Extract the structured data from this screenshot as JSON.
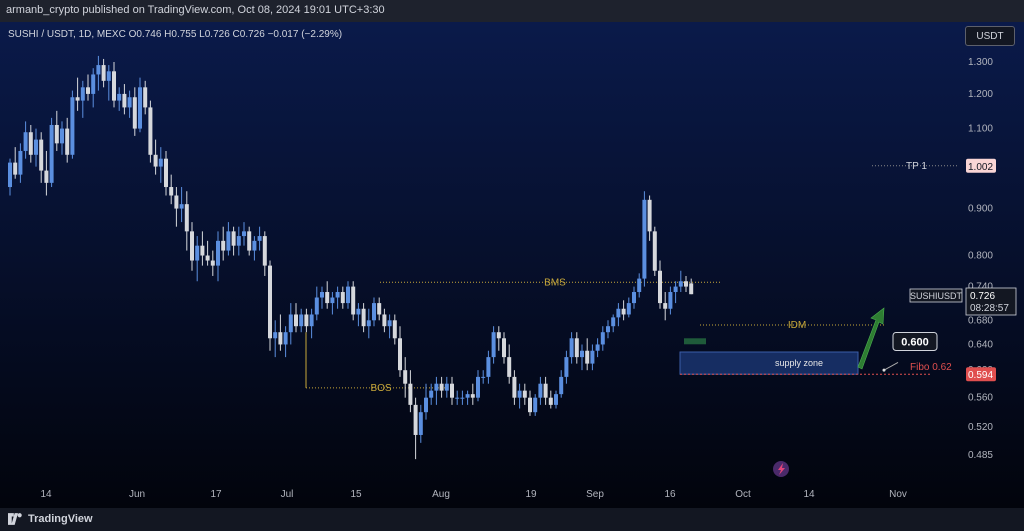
{
  "header": {
    "published": "armanb_crypto published on TradingView.com, Oct 08, 2024 19:01 UTC+3:30"
  },
  "symbol_info": "SUSHI / USDT, 1D, MEXC  O0.746  H0.755  L0.726  C0.726  −0.017 (−2.29%)",
  "currency": "USDT",
  "footer": {
    "brand": "TradingView"
  },
  "colors": {
    "background_top": "#0a1a4a",
    "background_bottom": "#02040c",
    "up": "#5b8fe0",
    "down": "#d6d8dc",
    "annotation": "#c8a83a",
    "accent_red": "#e04f4f",
    "supply_zone": "#1c3a7a",
    "arrow": "#2e7d32"
  },
  "labels": {
    "tp1": "TP 1",
    "tp1_price": "1.002",
    "bms": "BMS",
    "bos": "BOS",
    "idm": "IDM",
    "supply_zone": "supply zone",
    "fibo": "Fibo 0.62",
    "fibo_price": "0.594",
    "callout": "0.600",
    "symbol_tag": "SUSHIUSDT",
    "last_price": "0.726",
    "countdown": "08:28:57"
  },
  "chart_data": {
    "type": "candlestick",
    "symbol": "SUSHI / USDT",
    "interval": "1D",
    "exchange": "MEXC",
    "ohlc_last": {
      "open": 0.746,
      "high": 0.755,
      "low": 0.726,
      "close": 0.726,
      "change": -0.017,
      "change_pct": -2.29
    },
    "y_axis": {
      "scale": "log",
      "ticks": [
        "1.300",
        "1.200",
        "1.100",
        "0.900",
        "0.800",
        "0.740",
        "0.680",
        "0.640",
        "0.600",
        "0.560",
        "0.520",
        "0.485"
      ]
    },
    "x_axis": {
      "ticks": [
        "14",
        "Jun",
        "17",
        "Jul",
        "15",
        "Aug",
        "19",
        "Sep",
        "16",
        "Oct",
        "14",
        "Nov"
      ]
    },
    "candles": [
      [
        0.95,
        1.02,
        0.93,
        1.01
      ],
      [
        1.01,
        1.05,
        0.97,
        0.98
      ],
      [
        0.98,
        1.06,
        0.96,
        1.04
      ],
      [
        1.04,
        1.12,
        1.02,
        1.09
      ],
      [
        1.09,
        1.11,
        1.01,
        1.03
      ],
      [
        1.03,
        1.1,
        1.0,
        1.07
      ],
      [
        1.07,
        1.09,
        0.96,
        0.99
      ],
      [
        0.99,
        1.04,
        0.93,
        0.96
      ],
      [
        0.96,
        1.13,
        0.95,
        1.11
      ],
      [
        1.11,
        1.15,
        1.04,
        1.06
      ],
      [
        1.06,
        1.12,
        1.03,
        1.1
      ],
      [
        1.1,
        1.13,
        1.01,
        1.03
      ],
      [
        1.03,
        1.21,
        1.02,
        1.19
      ],
      [
        1.19,
        1.25,
        1.15,
        1.18
      ],
      [
        1.18,
        1.24,
        1.13,
        1.22
      ],
      [
        1.22,
        1.26,
        1.18,
        1.2
      ],
      [
        1.2,
        1.28,
        1.16,
        1.26
      ],
      [
        1.26,
        1.32,
        1.21,
        1.29
      ],
      [
        1.29,
        1.31,
        1.22,
        1.24
      ],
      [
        1.24,
        1.29,
        1.18,
        1.27
      ],
      [
        1.27,
        1.3,
        1.16,
        1.18
      ],
      [
        1.18,
        1.22,
        1.15,
        1.2
      ],
      [
        1.2,
        1.23,
        1.14,
        1.16
      ],
      [
        1.16,
        1.21,
        1.13,
        1.19
      ],
      [
        1.19,
        1.22,
        1.08,
        1.1
      ],
      [
        1.1,
        1.25,
        1.09,
        1.22
      ],
      [
        1.22,
        1.24,
        1.14,
        1.16
      ],
      [
        1.16,
        1.18,
        1.01,
        1.03
      ],
      [
        1.03,
        1.07,
        0.98,
        1.0
      ],
      [
        1.0,
        1.05,
        0.96,
        1.02
      ],
      [
        1.02,
        1.04,
        0.93,
        0.95
      ],
      [
        0.95,
        0.98,
        0.91,
        0.93
      ],
      [
        0.93,
        0.95,
        0.86,
        0.9
      ],
      [
        0.9,
        0.95,
        0.87,
        0.91
      ],
      [
        0.91,
        0.94,
        0.81,
        0.85
      ],
      [
        0.85,
        0.87,
        0.77,
        0.79
      ],
      [
        0.79,
        0.84,
        0.75,
        0.82
      ],
      [
        0.82,
        0.85,
        0.78,
        0.8
      ],
      [
        0.8,
        0.83,
        0.78,
        0.79
      ],
      [
        0.79,
        0.81,
        0.76,
        0.78
      ],
      [
        0.78,
        0.85,
        0.75,
        0.83
      ],
      [
        0.83,
        0.86,
        0.79,
        0.81
      ],
      [
        0.81,
        0.87,
        0.8,
        0.85
      ],
      [
        0.85,
        0.86,
        0.8,
        0.82
      ],
      [
        0.82,
        0.86,
        0.8,
        0.84
      ],
      [
        0.84,
        0.87,
        0.82,
        0.85
      ],
      [
        0.85,
        0.86,
        0.8,
        0.81
      ],
      [
        0.81,
        0.84,
        0.79,
        0.83
      ],
      [
        0.83,
        0.86,
        0.81,
        0.84
      ],
      [
        0.84,
        0.85,
        0.76,
        0.78
      ],
      [
        0.78,
        0.79,
        0.63,
        0.65
      ],
      [
        0.65,
        0.68,
        0.62,
        0.66
      ],
      [
        0.66,
        0.69,
        0.63,
        0.64
      ],
      [
        0.64,
        0.67,
        0.62,
        0.66
      ],
      [
        0.66,
        0.71,
        0.64,
        0.69
      ],
      [
        0.69,
        0.71,
        0.66,
        0.67
      ],
      [
        0.67,
        0.7,
        0.66,
        0.69
      ],
      [
        0.69,
        0.7,
        0.66,
        0.67
      ],
      [
        0.67,
        0.7,
        0.65,
        0.69
      ],
      [
        0.69,
        0.74,
        0.68,
        0.72
      ],
      [
        0.72,
        0.74,
        0.7,
        0.73
      ],
      [
        0.73,
        0.75,
        0.7,
        0.71
      ],
      [
        0.71,
        0.73,
        0.69,
        0.72
      ],
      [
        0.72,
        0.74,
        0.7,
        0.73
      ],
      [
        0.73,
        0.74,
        0.7,
        0.71
      ],
      [
        0.71,
        0.75,
        0.7,
        0.74
      ],
      [
        0.74,
        0.75,
        0.68,
        0.69
      ],
      [
        0.69,
        0.71,
        0.67,
        0.7
      ],
      [
        0.7,
        0.71,
        0.66,
        0.67
      ],
      [
        0.67,
        0.7,
        0.65,
        0.68
      ],
      [
        0.68,
        0.72,
        0.67,
        0.71
      ],
      [
        0.71,
        0.72,
        0.68,
        0.69
      ],
      [
        0.69,
        0.7,
        0.66,
        0.67
      ],
      [
        0.67,
        0.69,
        0.65,
        0.68
      ],
      [
        0.68,
        0.69,
        0.64,
        0.65
      ],
      [
        0.65,
        0.67,
        0.59,
        0.6
      ],
      [
        0.6,
        0.62,
        0.56,
        0.58
      ],
      [
        0.58,
        0.6,
        0.54,
        0.55
      ],
      [
        0.55,
        0.56,
        0.48,
        0.51
      ],
      [
        0.51,
        0.55,
        0.5,
        0.54
      ],
      [
        0.54,
        0.58,
        0.53,
        0.56
      ],
      [
        0.56,
        0.58,
        0.55,
        0.57
      ],
      [
        0.57,
        0.59,
        0.55,
        0.58
      ],
      [
        0.58,
        0.59,
        0.56,
        0.57
      ],
      [
        0.57,
        0.59,
        0.56,
        0.58
      ],
      [
        0.58,
        0.59,
        0.55,
        0.56
      ],
      [
        0.56,
        0.57,
        0.55,
        0.56
      ],
      [
        0.56,
        0.57,
        0.55,
        0.56
      ],
      [
        0.56,
        0.57,
        0.55,
        0.565
      ],
      [
        0.565,
        0.58,
        0.55,
        0.56
      ],
      [
        0.56,
        0.6,
        0.555,
        0.59
      ],
      [
        0.59,
        0.6,
        0.58,
        0.59
      ],
      [
        0.59,
        0.63,
        0.58,
        0.62
      ],
      [
        0.62,
        0.67,
        0.61,
        0.66
      ],
      [
        0.66,
        0.67,
        0.63,
        0.65
      ],
      [
        0.65,
        0.66,
        0.61,
        0.62
      ],
      [
        0.62,
        0.64,
        0.58,
        0.59
      ],
      [
        0.59,
        0.6,
        0.55,
        0.56
      ],
      [
        0.56,
        0.58,
        0.545,
        0.57
      ],
      [
        0.57,
        0.58,
        0.55,
        0.56
      ],
      [
        0.56,
        0.57,
        0.535,
        0.54
      ],
      [
        0.54,
        0.565,
        0.535,
        0.56
      ],
      [
        0.56,
        0.59,
        0.55,
        0.58
      ],
      [
        0.58,
        0.59,
        0.55,
        0.56
      ],
      [
        0.56,
        0.57,
        0.545,
        0.55
      ],
      [
        0.55,
        0.57,
        0.545,
        0.565
      ],
      [
        0.565,
        0.6,
        0.56,
        0.59
      ],
      [
        0.59,
        0.63,
        0.58,
        0.62
      ],
      [
        0.62,
        0.66,
        0.61,
        0.65
      ],
      [
        0.65,
        0.66,
        0.61,
        0.62
      ],
      [
        0.62,
        0.64,
        0.6,
        0.63
      ],
      [
        0.63,
        0.65,
        0.6,
        0.61
      ],
      [
        0.61,
        0.64,
        0.6,
        0.63
      ],
      [
        0.63,
        0.65,
        0.62,
        0.64
      ],
      [
        0.64,
        0.67,
        0.63,
        0.66
      ],
      [
        0.66,
        0.68,
        0.65,
        0.67
      ],
      [
        0.67,
        0.69,
        0.66,
        0.685
      ],
      [
        0.685,
        0.71,
        0.67,
        0.7
      ],
      [
        0.7,
        0.715,
        0.68,
        0.69
      ],
      [
        0.69,
        0.72,
        0.685,
        0.71
      ],
      [
        0.71,
        0.74,
        0.7,
        0.73
      ],
      [
        0.73,
        0.765,
        0.72,
        0.755
      ],
      [
        0.755,
        0.94,
        0.74,
        0.92
      ],
      [
        0.92,
        0.93,
        0.83,
        0.85
      ],
      [
        0.85,
        0.86,
        0.76,
        0.77
      ],
      [
        0.77,
        0.79,
        0.7,
        0.71
      ],
      [
        0.71,
        0.73,
        0.68,
        0.7
      ],
      [
        0.7,
        0.74,
        0.69,
        0.73
      ],
      [
        0.73,
        0.75,
        0.71,
        0.74
      ],
      [
        0.74,
        0.77,
        0.73,
        0.75
      ],
      [
        0.75,
        0.76,
        0.73,
        0.74
      ],
      [
        0.746,
        0.755,
        0.726,
        0.726
      ]
    ],
    "annotations": [
      {
        "type": "horizontal_line",
        "label": "TP 1",
        "price": 1.002
      },
      {
        "type": "horizontal_line",
        "label": "BMS",
        "price": 0.748
      },
      {
        "type": "horizontal_line",
        "label": "BOS",
        "price": 0.574
      },
      {
        "type": "horizontal_line",
        "label": "IDM",
        "price": 0.672
      },
      {
        "type": "zone",
        "label": "supply zone",
        "from": 0.594,
        "to": 0.628
      },
      {
        "type": "level",
        "label": "Fibo 0.62",
        "price": 0.594
      },
      {
        "type": "callout",
        "label": "0.600",
        "price": 0.6
      }
    ]
  }
}
